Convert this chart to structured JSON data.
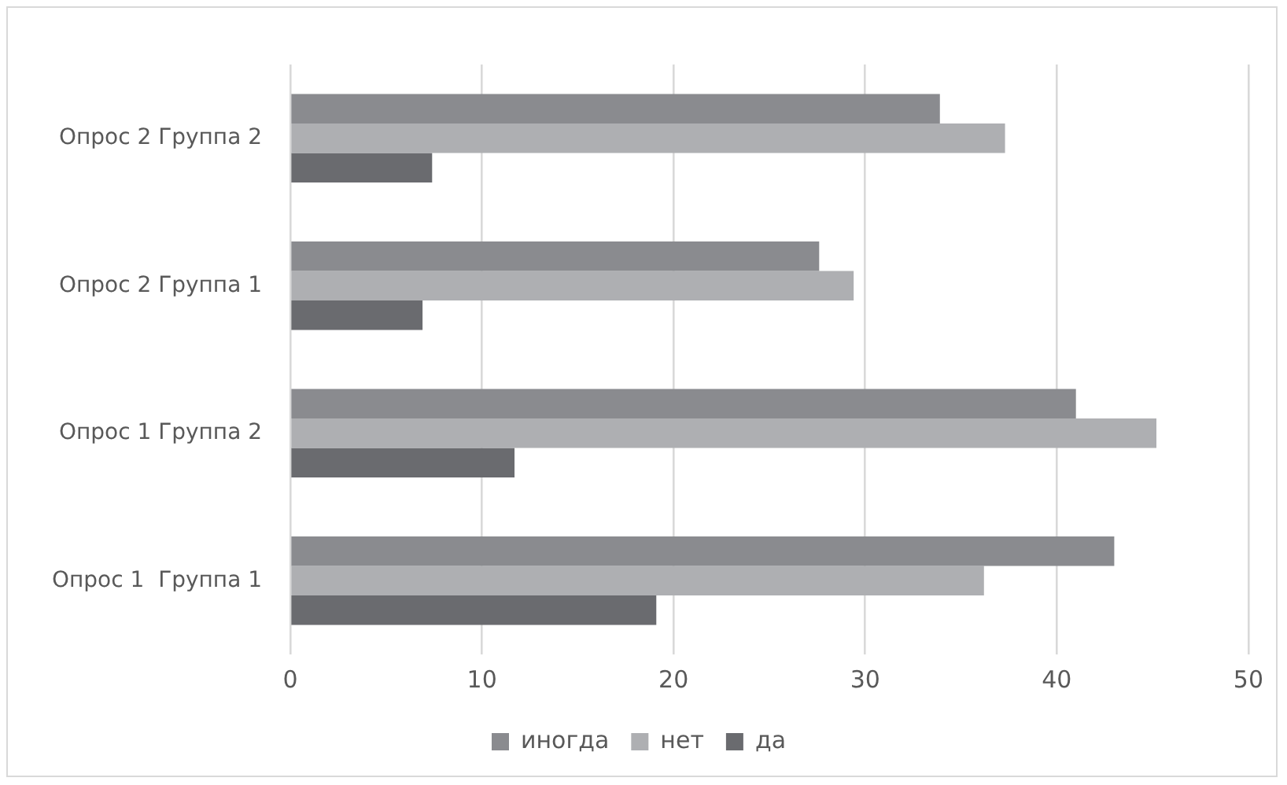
{
  "chart_data": {
    "type": "bar",
    "orientation": "horizontal",
    "categories": [
      "Опрос 2 Группа 2",
      "Опрос 2 Группа 1",
      "Опрос 1 Группа 2",
      "Опрос 1  Группа 1"
    ],
    "series": [
      {
        "name": "иногда",
        "color": "#8a8b8f",
        "values": [
          33.9,
          27.6,
          41.0,
          43.0
        ]
      },
      {
        "name": "нет",
        "color": "#aeafb2",
        "values": [
          37.3,
          29.4,
          45.2,
          36.2
        ]
      },
      {
        "name": "да",
        "color": "#6a6b6f",
        "values": [
          7.4,
          6.9,
          11.7,
          19.1
        ]
      }
    ],
    "xlim": [
      0,
      50
    ],
    "xticks": [
      0,
      10,
      20,
      30,
      40,
      50
    ],
    "grid": "x",
    "legend": "bottom"
  }
}
